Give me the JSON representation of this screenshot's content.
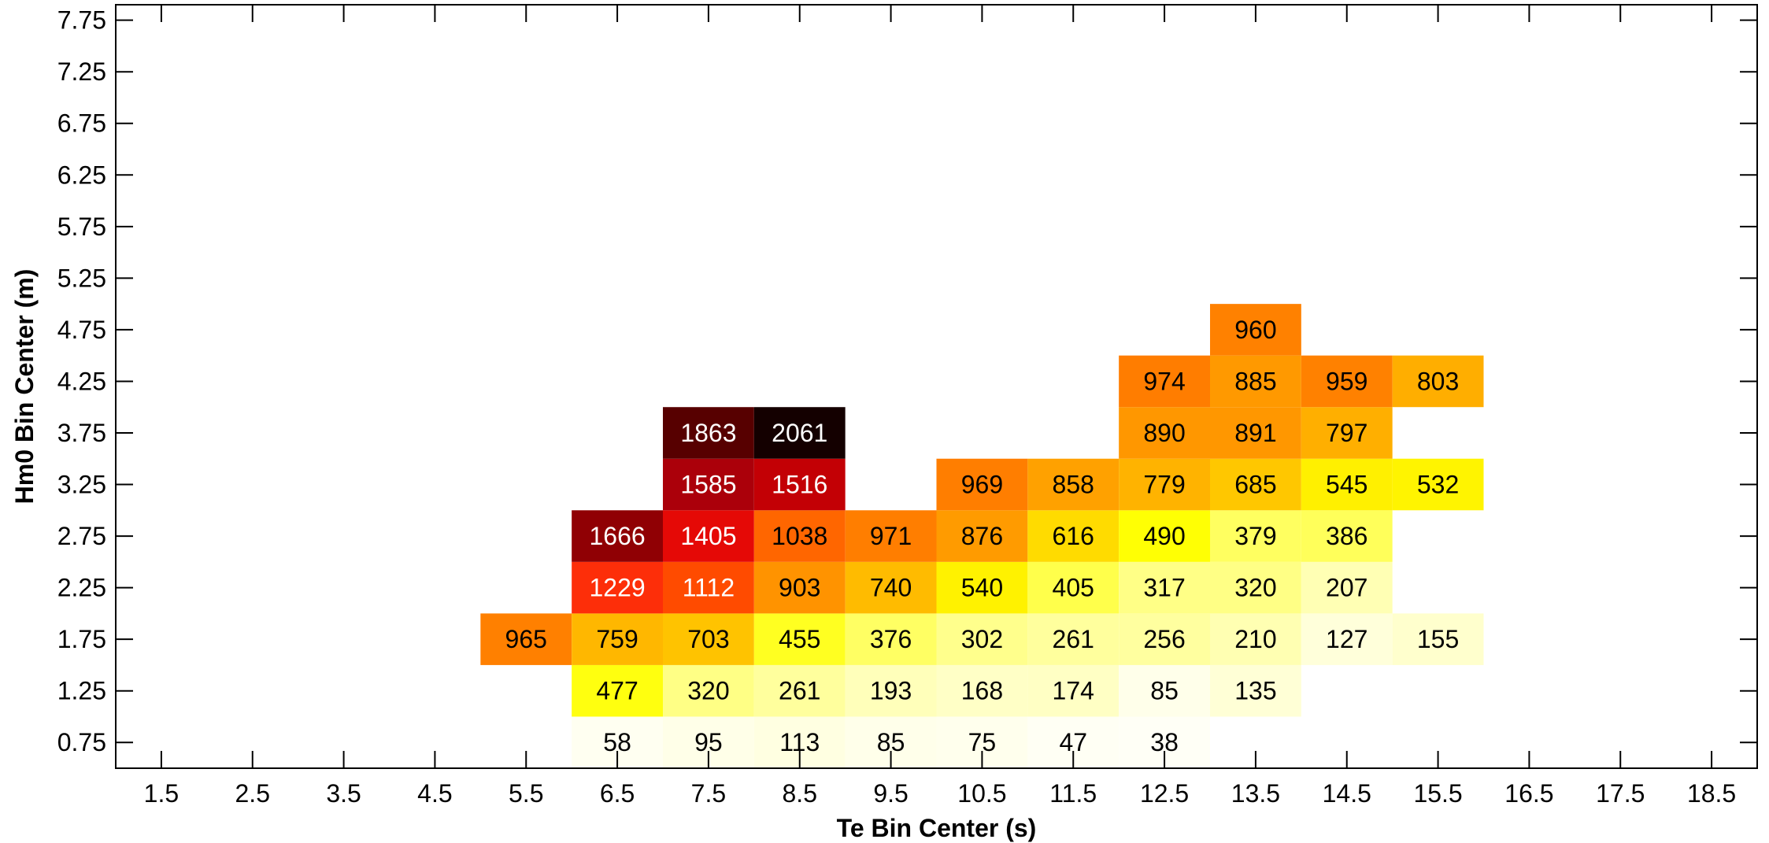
{
  "chart_data": {
    "type": "heatmap",
    "title": "",
    "xlabel": "Te Bin Center (s)",
    "ylabel": "Hm0 Bin Center (m)",
    "x_ticks": [
      "1.5",
      "2.5",
      "3.5",
      "4.5",
      "5.5",
      "6.5",
      "7.5",
      "8.5",
      "9.5",
      "10.5",
      "11.5",
      "12.5",
      "13.5",
      "14.5",
      "15.5",
      "16.5",
      "17.5",
      "18.5"
    ],
    "y_ticks": [
      "0.75",
      "1.25",
      "1.75",
      "2.25",
      "2.75",
      "3.25",
      "3.75",
      "4.25",
      "4.75",
      "5.25",
      "5.75",
      "6.25",
      "6.75",
      "7.25",
      "7.75"
    ],
    "xlim": [
      1,
      19
    ],
    "ylim": [
      0.5,
      7.9
    ],
    "colormap": "hot",
    "vmax": 2061,
    "cells": [
      {
        "x": 6.5,
        "y": 0.75,
        "value": 58
      },
      {
        "x": 7.5,
        "y": 0.75,
        "value": 95
      },
      {
        "x": 8.5,
        "y": 0.75,
        "value": 113
      },
      {
        "x": 9.5,
        "y": 0.75,
        "value": 85
      },
      {
        "x": 10.5,
        "y": 0.75,
        "value": 75
      },
      {
        "x": 11.5,
        "y": 0.75,
        "value": 47
      },
      {
        "x": 12.5,
        "y": 0.75,
        "value": 38
      },
      {
        "x": 6.5,
        "y": 1.25,
        "value": 477
      },
      {
        "x": 7.5,
        "y": 1.25,
        "value": 320
      },
      {
        "x": 8.5,
        "y": 1.25,
        "value": 261
      },
      {
        "x": 9.5,
        "y": 1.25,
        "value": 193
      },
      {
        "x": 10.5,
        "y": 1.25,
        "value": 168
      },
      {
        "x": 11.5,
        "y": 1.25,
        "value": 174
      },
      {
        "x": 12.5,
        "y": 1.25,
        "value": 85
      },
      {
        "x": 13.5,
        "y": 1.25,
        "value": 135
      },
      {
        "x": 5.5,
        "y": 1.75,
        "value": 965
      },
      {
        "x": 6.5,
        "y": 1.75,
        "value": 759
      },
      {
        "x": 7.5,
        "y": 1.75,
        "value": 703
      },
      {
        "x": 8.5,
        "y": 1.75,
        "value": 455
      },
      {
        "x": 9.5,
        "y": 1.75,
        "value": 376
      },
      {
        "x": 10.5,
        "y": 1.75,
        "value": 302
      },
      {
        "x": 11.5,
        "y": 1.75,
        "value": 261
      },
      {
        "x": 12.5,
        "y": 1.75,
        "value": 256
      },
      {
        "x": 13.5,
        "y": 1.75,
        "value": 210
      },
      {
        "x": 14.5,
        "y": 1.75,
        "value": 127
      },
      {
        "x": 15.5,
        "y": 1.75,
        "value": 155
      },
      {
        "x": 6.5,
        "y": 2.25,
        "value": 1229
      },
      {
        "x": 7.5,
        "y": 2.25,
        "value": 1112
      },
      {
        "x": 8.5,
        "y": 2.25,
        "value": 903
      },
      {
        "x": 9.5,
        "y": 2.25,
        "value": 740
      },
      {
        "x": 10.5,
        "y": 2.25,
        "value": 540
      },
      {
        "x": 11.5,
        "y": 2.25,
        "value": 405
      },
      {
        "x": 12.5,
        "y": 2.25,
        "value": 317
      },
      {
        "x": 13.5,
        "y": 2.25,
        "value": 320
      },
      {
        "x": 14.5,
        "y": 2.25,
        "value": 207
      },
      {
        "x": 6.5,
        "y": 2.75,
        "value": 1666
      },
      {
        "x": 7.5,
        "y": 2.75,
        "value": 1405
      },
      {
        "x": 8.5,
        "y": 2.75,
        "value": 1038
      },
      {
        "x": 9.5,
        "y": 2.75,
        "value": 971
      },
      {
        "x": 10.5,
        "y": 2.75,
        "value": 876
      },
      {
        "x": 11.5,
        "y": 2.75,
        "value": 616
      },
      {
        "x": 12.5,
        "y": 2.75,
        "value": 490
      },
      {
        "x": 13.5,
        "y": 2.75,
        "value": 379
      },
      {
        "x": 14.5,
        "y": 2.75,
        "value": 386
      },
      {
        "x": 7.5,
        "y": 3.25,
        "value": 1585
      },
      {
        "x": 8.5,
        "y": 3.25,
        "value": 1516
      },
      {
        "x": 10.5,
        "y": 3.25,
        "value": 969
      },
      {
        "x": 11.5,
        "y": 3.25,
        "value": 858
      },
      {
        "x": 12.5,
        "y": 3.25,
        "value": 779
      },
      {
        "x": 13.5,
        "y": 3.25,
        "value": 685
      },
      {
        "x": 14.5,
        "y": 3.25,
        "value": 545
      },
      {
        "x": 15.5,
        "y": 3.25,
        "value": 532
      },
      {
        "x": 7.5,
        "y": 3.75,
        "value": 1863
      },
      {
        "x": 8.5,
        "y": 3.75,
        "value": 2061
      },
      {
        "x": 12.5,
        "y": 3.75,
        "value": 890
      },
      {
        "x": 13.5,
        "y": 3.75,
        "value": 891
      },
      {
        "x": 14.5,
        "y": 3.75,
        "value": 797
      },
      {
        "x": 12.5,
        "y": 4.25,
        "value": 974
      },
      {
        "x": 13.5,
        "y": 4.25,
        "value": 885
      },
      {
        "x": 14.5,
        "y": 4.25,
        "value": 959
      },
      {
        "x": 15.5,
        "y": 4.25,
        "value": 803
      },
      {
        "x": 13.5,
        "y": 4.75,
        "value": 960
      }
    ]
  }
}
